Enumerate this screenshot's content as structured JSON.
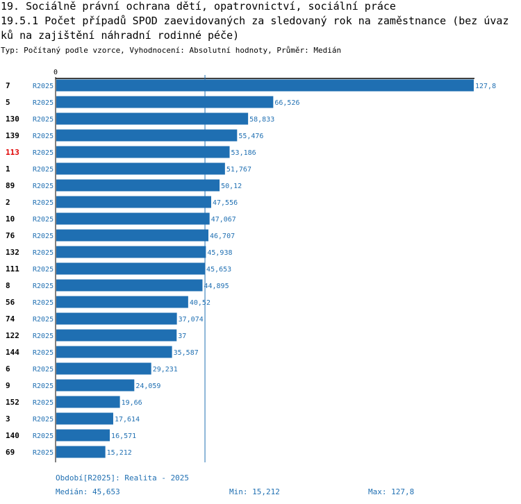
{
  "header": {
    "title_line1": "19. Sociálně právní ochrana dětí, opatrovnictví, sociální práce",
    "title_line2": "19.5.1 Počet případů SPOD zaevidovaných za sledovaný rok na zaměstnance (bez úvaz",
    "title_line3": "ků na zajištění náhradní rodinné péče)",
    "subtitle": "Typ: Počítaný podle vzorce, Vyhodnocení: Absolutní hodnoty, Průměr: Medián"
  },
  "chart_data": {
    "type": "bar",
    "orientation": "horizontal",
    "axis_zero_label": "0",
    "xlim": [
      0,
      127.8
    ],
    "median_line": 45.653,
    "bar_color": "#1f6fb2",
    "highlight_color": "#e00000",
    "highlight_category": "113",
    "series_label": "R2025",
    "categories": [
      "7",
      "5",
      "130",
      "139",
      "113",
      "1",
      "89",
      "2",
      "10",
      "76",
      "132",
      "111",
      "8",
      "56",
      "74",
      "122",
      "144",
      "6",
      "9",
      "152",
      "3",
      "140",
      "69"
    ],
    "values": [
      127.8,
      66.526,
      58.833,
      55.476,
      53.186,
      51.767,
      50.12,
      47.556,
      47.067,
      46.707,
      45.938,
      45.653,
      44.895,
      40.52,
      37.074,
      37,
      35.587,
      29.231,
      24.059,
      19.66,
      17.614,
      16.571,
      15.212
    ],
    "value_labels": [
      "127,8",
      "66,526",
      "58,833",
      "55,476",
      "53,186",
      "51,767",
      "50,12",
      "47,556",
      "47,067",
      "46,707",
      "45,938",
      "45,653",
      "44,895",
      "40,52",
      "37,074",
      "37",
      "35,587",
      "29,231",
      "24,059",
      "19,66",
      "17,614",
      "16,571",
      "15,212"
    ]
  },
  "footer": {
    "period": "Období[R2025]: Realita - 2025",
    "median": "Medián: 45,653",
    "min": "Min: 15,212",
    "max": "Max: 127,8"
  }
}
